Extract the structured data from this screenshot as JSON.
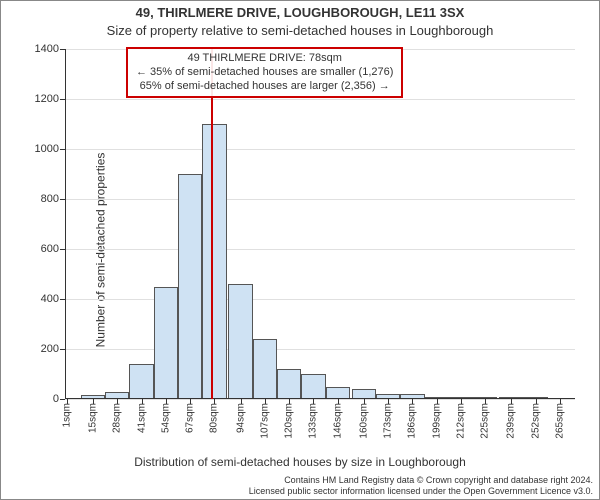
{
  "title_line1": "49, THIRLMERE DRIVE, LOUGHBOROUGH, LE11 3SX",
  "title_line2": "Size of property relative to semi-detached houses in Loughborough",
  "annotation": {
    "line1": "49 THIRLMERE DRIVE: 78sqm",
    "line2": "← 35% of semi-detached houses are smaller (1,276)",
    "line3": "65% of semi-detached houses are larger (2,356) →",
    "border_color": "#cc0000",
    "font_size": 11
  },
  "ylabel": "Number of semi-detached properties",
  "xlabel": "Distribution of semi-detached houses by size in Loughborough",
  "footer_line1": "Contains HM Land Registry data © Crown copyright and database right 2024.",
  "footer_line2": "Licensed public sector information licensed under the Open Government Licence v3.0.",
  "title1_fontsize": 13,
  "title2_fontsize": 13,
  "ylabel_fontsize": 12,
  "xlabel_fontsize": 12,
  "footer_fontsize": 9,
  "chart": {
    "type": "bar",
    "background_color": "#ffffff",
    "grid_color": "#e0e0e0",
    "axis_color": "#333333",
    "bar_fill": "#cfe2f3",
    "bar_border": "#555555",
    "marker_color": "#cc0000",
    "marker_x": 78,
    "xlim": [
      0,
      273
    ],
    "ylim": [
      0,
      1400
    ],
    "ytick_step": 200,
    "yticks": [
      0,
      200,
      400,
      600,
      800,
      1000,
      1200,
      1400
    ],
    "xtick_fontsize": 10,
    "ytick_fontsize": 11,
    "bar_width_sqm": 13,
    "xticks": [
      {
        "pos": 1,
        "label": "1sqm"
      },
      {
        "pos": 15,
        "label": "15sqm"
      },
      {
        "pos": 28,
        "label": "28sqm"
      },
      {
        "pos": 41,
        "label": "41sqm"
      },
      {
        "pos": 54,
        "label": "54sqm"
      },
      {
        "pos": 67,
        "label": "67sqm"
      },
      {
        "pos": 80,
        "label": "80sqm"
      },
      {
        "pos": 94,
        "label": "94sqm"
      },
      {
        "pos": 107,
        "label": "107sqm"
      },
      {
        "pos": 120,
        "label": "120sqm"
      },
      {
        "pos": 133,
        "label": "133sqm"
      },
      {
        "pos": 146,
        "label": "146sqm"
      },
      {
        "pos": 160,
        "label": "160sqm"
      },
      {
        "pos": 173,
        "label": "173sqm"
      },
      {
        "pos": 186,
        "label": "186sqm"
      },
      {
        "pos": 199,
        "label": "199sqm"
      },
      {
        "pos": 212,
        "label": "212sqm"
      },
      {
        "pos": 225,
        "label": "225sqm"
      },
      {
        "pos": 239,
        "label": "239sqm"
      },
      {
        "pos": 252,
        "label": "252sqm"
      },
      {
        "pos": 265,
        "label": "265sqm"
      }
    ],
    "bars": [
      {
        "x": 1,
        "y": 0
      },
      {
        "x": 15,
        "y": 15
      },
      {
        "x": 28,
        "y": 30
      },
      {
        "x": 41,
        "y": 140
      },
      {
        "x": 54,
        "y": 450
      },
      {
        "x": 67,
        "y": 900
      },
      {
        "x": 80,
        "y": 1100
      },
      {
        "x": 94,
        "y": 460
      },
      {
        "x": 107,
        "y": 240
      },
      {
        "x": 120,
        "y": 120
      },
      {
        "x": 133,
        "y": 100
      },
      {
        "x": 146,
        "y": 50
      },
      {
        "x": 160,
        "y": 40
      },
      {
        "x": 173,
        "y": 20
      },
      {
        "x": 186,
        "y": 20
      },
      {
        "x": 199,
        "y": 10
      },
      {
        "x": 212,
        "y": 8
      },
      {
        "x": 225,
        "y": 5
      },
      {
        "x": 239,
        "y": 10
      },
      {
        "x": 252,
        "y": 5
      },
      {
        "x": 265,
        "y": 0
      }
    ]
  }
}
